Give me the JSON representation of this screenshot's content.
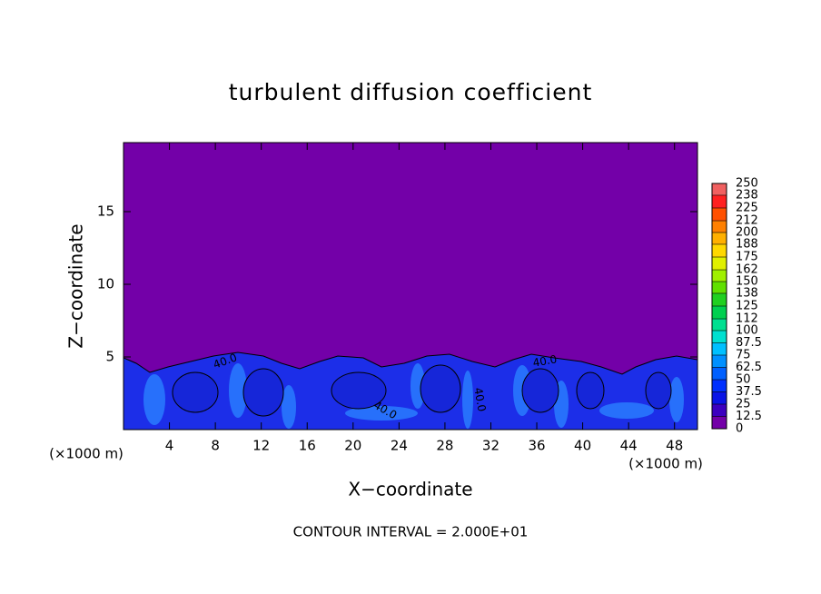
{
  "chart_data": {
    "type": "contour",
    "title": "turbulent diffusion coefficient",
    "xlabel": "X−coordinate",
    "ylabel": "Z−coordinate",
    "xunit": "(×1000 m)",
    "yunit": "(×1000 m)",
    "annotation": "CONTOUR INTERVAL = 2.000E+01",
    "xlim": [
      0,
      50
    ],
    "xticks": [
      4,
      8,
      12,
      16,
      20,
      24,
      28,
      32,
      36,
      40,
      44,
      48
    ],
    "ylim": [
      0,
      19.75
    ],
    "yticks": [
      5,
      10,
      15
    ],
    "background_color": "#7300a8",
    "contour_labels": [
      "40.0",
      "40.0",
      "40.0",
      "40.0"
    ],
    "colorbar": {
      "ticks": [
        0,
        12.5,
        25,
        37.5,
        50,
        62.5,
        75,
        87.5,
        100,
        112,
        125,
        138,
        150,
        162,
        175,
        188,
        200,
        212,
        225,
        238,
        250
      ],
      "colors": [
        "#7300a8",
        "#3c00c0",
        "#0a14e6",
        "#0030ff",
        "#0060ff",
        "#0090ff",
        "#00c0ff",
        "#00e0d0",
        "#00e090",
        "#00d050",
        "#20d020",
        "#60e000",
        "#a0f000",
        "#e0f000",
        "#ffd800",
        "#ffb000",
        "#ff8000",
        "#ff5000",
        "#ff2020",
        "#f06060"
      ]
    }
  }
}
